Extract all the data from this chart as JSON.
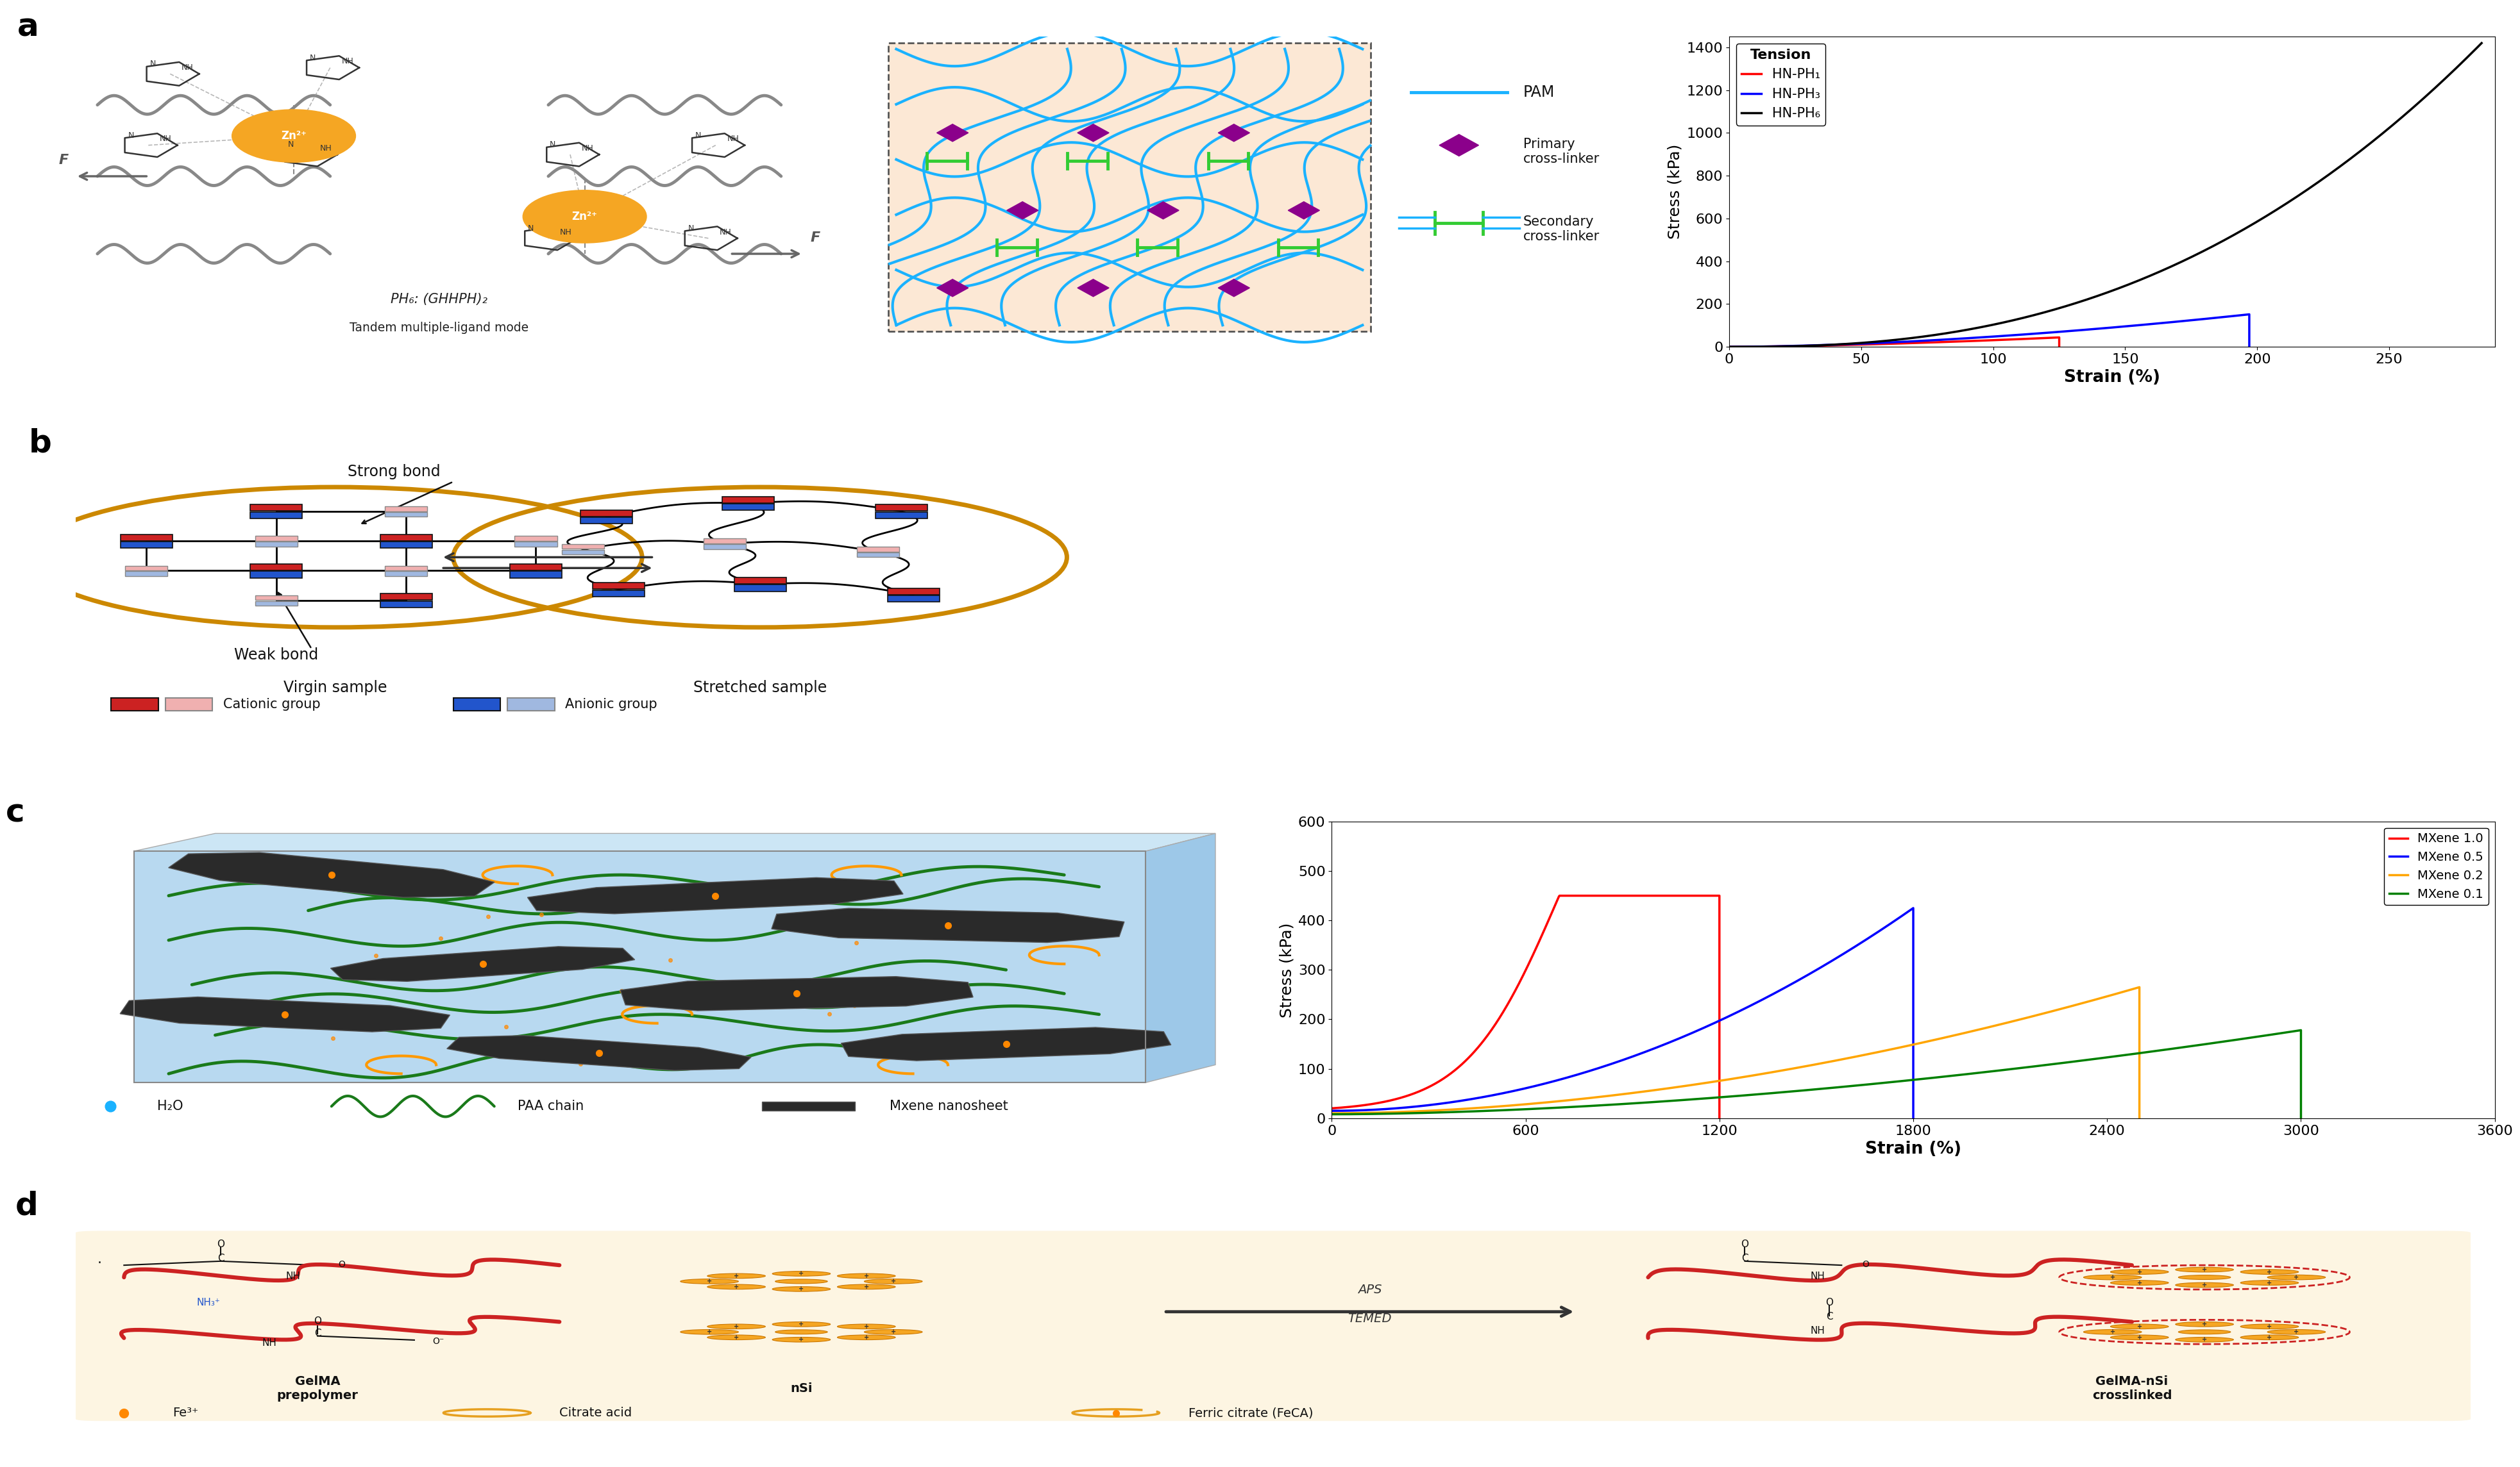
{
  "fig_width": 39.29,
  "fig_height": 22.89,
  "bg_color": "#ffffff",
  "plot1": {
    "title": "Tension",
    "ylabel": "Stress (kPa)",
    "xlabel": "Strain (%)",
    "xlim": [
      0,
      290
    ],
    "ylim": [
      0,
      1450
    ],
    "yticks": [
      0,
      200,
      400,
      600,
      800,
      1000,
      1200,
      1400
    ],
    "xticks": [
      0,
      50,
      100,
      150,
      200,
      250
    ],
    "legend": [
      "HN-PH₁",
      "HN-PH₃",
      "HN-PH₆"
    ],
    "colors": [
      "#ff0000",
      "#0000ff",
      "#000000"
    ]
  },
  "plot2": {
    "ylabel": "Stress (kPa)",
    "xlabel": "Strain (%)",
    "xlim": [
      0,
      3600
    ],
    "ylim": [
      0,
      600
    ],
    "yticks": [
      0,
      100,
      200,
      300,
      400,
      500,
      600
    ],
    "xticks": [
      0,
      600,
      1200,
      1800,
      2400,
      3000,
      3600
    ],
    "legend": [
      "MXene 1.0",
      "MXene 0.5",
      "MXene 0.2",
      "MXene 0.1"
    ],
    "colors": [
      "#ff0000",
      "#0000ff",
      "#ffa500",
      "#008000"
    ]
  },
  "network_bg": "#fce8d5",
  "network_border": "#888888",
  "pam_color": "#1ab2ff",
  "primary_cl_color": "#8B008B",
  "secondary_cl_color": "#33cc33",
  "circle_color": "#cc8800",
  "red_sq": "#cc2222",
  "pink_sq": "#f0b0b0",
  "blue_sq": "#2255cc",
  "lblue_sq": "#a0b8e0"
}
